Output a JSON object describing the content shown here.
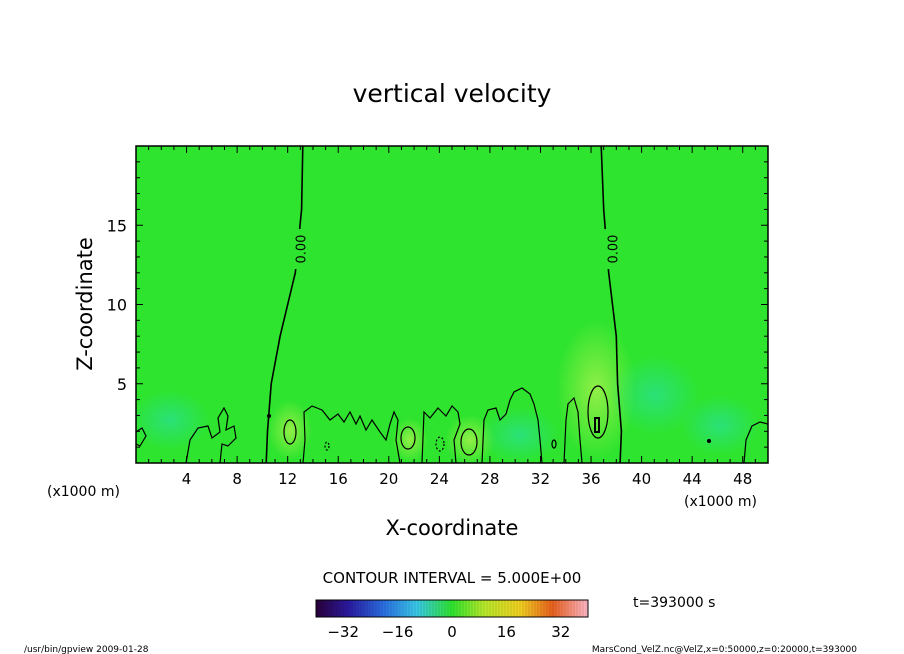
{
  "chart_data": {
    "type": "heatmap",
    "title": "vertical velocity",
    "xlabel": "X-coordinate",
    "ylabel": "Z-coordinate",
    "x_unit_left": "(x1000 m)",
    "x_unit_right": "(x1000 m)",
    "xlim": [
      0,
      50
    ],
    "ylim": [
      0,
      20
    ],
    "x_ticks": [
      4,
      8,
      12,
      16,
      20,
      24,
      28,
      32,
      36,
      40,
      44,
      48
    ],
    "y_ticks": [
      5,
      10,
      15
    ],
    "x_tick_labels": [
      "4",
      "8",
      "12",
      "16",
      "20",
      "24",
      "28",
      "32",
      "36",
      "40",
      "44",
      "48"
    ],
    "y_tick_labels": [
      "5",
      "10",
      "15"
    ],
    "contour_interval_text": "CONTOUR INTERVAL = 5.000E+00",
    "time_text": "t=393000 s",
    "contour_labels": [
      {
        "text": "0.00",
        "x": 13.0,
        "z": 13.5
      },
      {
        "text": "0.00",
        "x": 37.7,
        "z": 13.5
      }
    ],
    "zero_contours": [
      {
        "points": [
          [
            13.2,
            20
          ],
          [
            13.1,
            16
          ],
          [
            12.6,
            12
          ],
          [
            11.4,
            8
          ],
          [
            10.7,
            5
          ],
          [
            10.4,
            2
          ],
          [
            10.3,
            0
          ]
        ]
      },
      {
        "points": [
          [
            36.8,
            20
          ],
          [
            37.0,
            16
          ],
          [
            37.4,
            12
          ],
          [
            38.0,
            8
          ],
          [
            38.1,
            5
          ],
          [
            38.4,
            2
          ],
          [
            38.3,
            0
          ]
        ]
      }
    ],
    "colorbar": {
      "range": [
        -40,
        40
      ],
      "ticks": [
        -32,
        -16,
        0,
        16,
        32
      ],
      "tick_labels": [
        "−32",
        "−16",
        "0",
        "16",
        "32"
      ]
    },
    "field_description_values": {
      "background": 0,
      "updraft_max": 5,
      "downdraft_min": -5
    },
    "colors": {
      "field": "#2ee42e",
      "field_light": "#6ef03c",
      "field_cool": "#29e36a",
      "contour": "#000000"
    }
  },
  "footer": {
    "left": "/usr/bin/gpview   2009-01-28",
    "right": "MarsCond_VelZ.nc@VelZ,x=0:50000,z=0:20000,t=393000"
  }
}
